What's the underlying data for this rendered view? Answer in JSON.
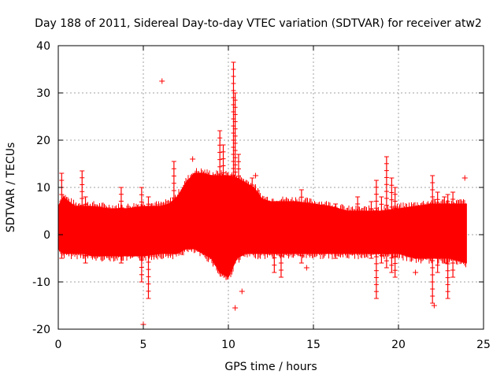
{
  "chart_data": {
    "type": "scatter",
    "title": "Day 188 of 2011, Sidereal Day-to-day VTEC variation (SDTVAR) for receiver atw2",
    "xlabel": "GPS time / hours",
    "ylabel": "SDTVAR / TECUs",
    "xlim": [
      0,
      25
    ],
    "ylim": [
      -20,
      40
    ],
    "xticks": [
      0,
      5,
      10,
      15,
      20,
      25
    ],
    "yticks": [
      -20,
      -10,
      0,
      10,
      20,
      30,
      40
    ],
    "grid": true,
    "marker": "+",
    "color": "#ff0000",
    "envelope": {
      "description": "Dense band of points between lower and upper envelopes (TECU) vs GPS time (hours)",
      "x": [
        0.0,
        0.3,
        0.6,
        1.0,
        1.5,
        2.0,
        3.0,
        4.0,
        5.0,
        6.0,
        6.5,
        7.0,
        7.5,
        8.0,
        8.5,
        9.0,
        9.5,
        10.0,
        10.5,
        11.0,
        11.5,
        12.0,
        12.5,
        13.0,
        14.0,
        15.0,
        16.0,
        17.0,
        18.0,
        19.0,
        20.0,
        21.0,
        22.0,
        23.0,
        24.0
      ],
      "upper": [
        6,
        8,
        7,
        6,
        6,
        6,
        5.5,
        5.5,
        6,
        6,
        6.5,
        8,
        11,
        13,
        13,
        12.5,
        12.5,
        12.5,
        12,
        11,
        10,
        7.5,
        7,
        7,
        7,
        6.5,
        6,
        5,
        5,
        5,
        5.5,
        6,
        6.5,
        6.5,
        6.5
      ],
      "lower": [
        -3,
        -4,
        -4,
        -4,
        -4,
        -4.5,
        -4.5,
        -4.5,
        -4.5,
        -4,
        -4,
        -4,
        -3,
        -3,
        -4,
        -5,
        -8,
        -9,
        -5,
        -4,
        -4,
        -4,
        -4,
        -4,
        -4,
        -4,
        -4,
        -4,
        -4,
        -4,
        -4,
        -5,
        -5,
        -5,
        -6
      ]
    },
    "spikes": [
      {
        "x": 0.2,
        "ymin": -5,
        "ymax": 13
      },
      {
        "x": 1.4,
        "ymin": -4,
        "ymax": 13.5
      },
      {
        "x": 1.6,
        "ymin": -6,
        "ymax": 8
      },
      {
        "x": 3.7,
        "ymin": -6,
        "ymax": 10
      },
      {
        "x": 4.9,
        "ymin": -10,
        "ymax": 10
      },
      {
        "x": 5.3,
        "ymin": -13.5,
        "ymax": 8
      },
      {
        "x": 6.8,
        "ymin": -3,
        "ymax": 15.5
      },
      {
        "x": 9.5,
        "ymin": -7,
        "ymax": 22
      },
      {
        "x": 9.7,
        "ymin": -6,
        "ymax": 19
      },
      {
        "x": 10.3,
        "ymin": -4,
        "ymax": 36.5
      },
      {
        "x": 10.4,
        "ymin": -5,
        "ymax": 30
      },
      {
        "x": 10.6,
        "ymin": -3,
        "ymax": 17
      },
      {
        "x": 11.4,
        "ymin": -3,
        "ymax": 12
      },
      {
        "x": 12.7,
        "ymin": -8,
        "ymax": 6
      },
      {
        "x": 13.1,
        "ymin": -9,
        "ymax": 6
      },
      {
        "x": 14.3,
        "ymin": -6,
        "ymax": 9.5
      },
      {
        "x": 16.3,
        "ymin": -5,
        "ymax": 6.5
      },
      {
        "x": 17.6,
        "ymin": -4,
        "ymax": 8
      },
      {
        "x": 18.4,
        "ymin": -5,
        "ymax": 7
      },
      {
        "x": 18.7,
        "ymin": -13.5,
        "ymax": 11.5
      },
      {
        "x": 19.0,
        "ymin": -6,
        "ymax": 8
      },
      {
        "x": 19.3,
        "ymin": -7,
        "ymax": 16.5
      },
      {
        "x": 19.6,
        "ymin": -8,
        "ymax": 12
      },
      {
        "x": 19.8,
        "ymin": -9,
        "ymax": 10
      },
      {
        "x": 22.0,
        "ymin": -14.5,
        "ymax": 12.5
      },
      {
        "x": 22.3,
        "ymin": -8,
        "ymax": 9
      },
      {
        "x": 22.7,
        "ymin": -6,
        "ymax": 8
      },
      {
        "x": 22.9,
        "ymin": -13.5,
        "ymax": 8.5
      },
      {
        "x": 23.2,
        "ymin": -9,
        "ymax": 9
      }
    ],
    "outliers": [
      {
        "x": 5.0,
        "y": -19
      },
      {
        "x": 6.1,
        "y": 32.5
      },
      {
        "x": 7.9,
        "y": 16
      },
      {
        "x": 10.4,
        "y": -15.5
      },
      {
        "x": 10.8,
        "y": -12
      },
      {
        "x": 11.6,
        "y": 12.5
      },
      {
        "x": 14.6,
        "y": -7
      },
      {
        "x": 15.7,
        "y": -3.5
      },
      {
        "x": 21.0,
        "y": -8
      },
      {
        "x": 22.1,
        "y": -15
      },
      {
        "x": 23.9,
        "y": 12
      }
    ]
  }
}
